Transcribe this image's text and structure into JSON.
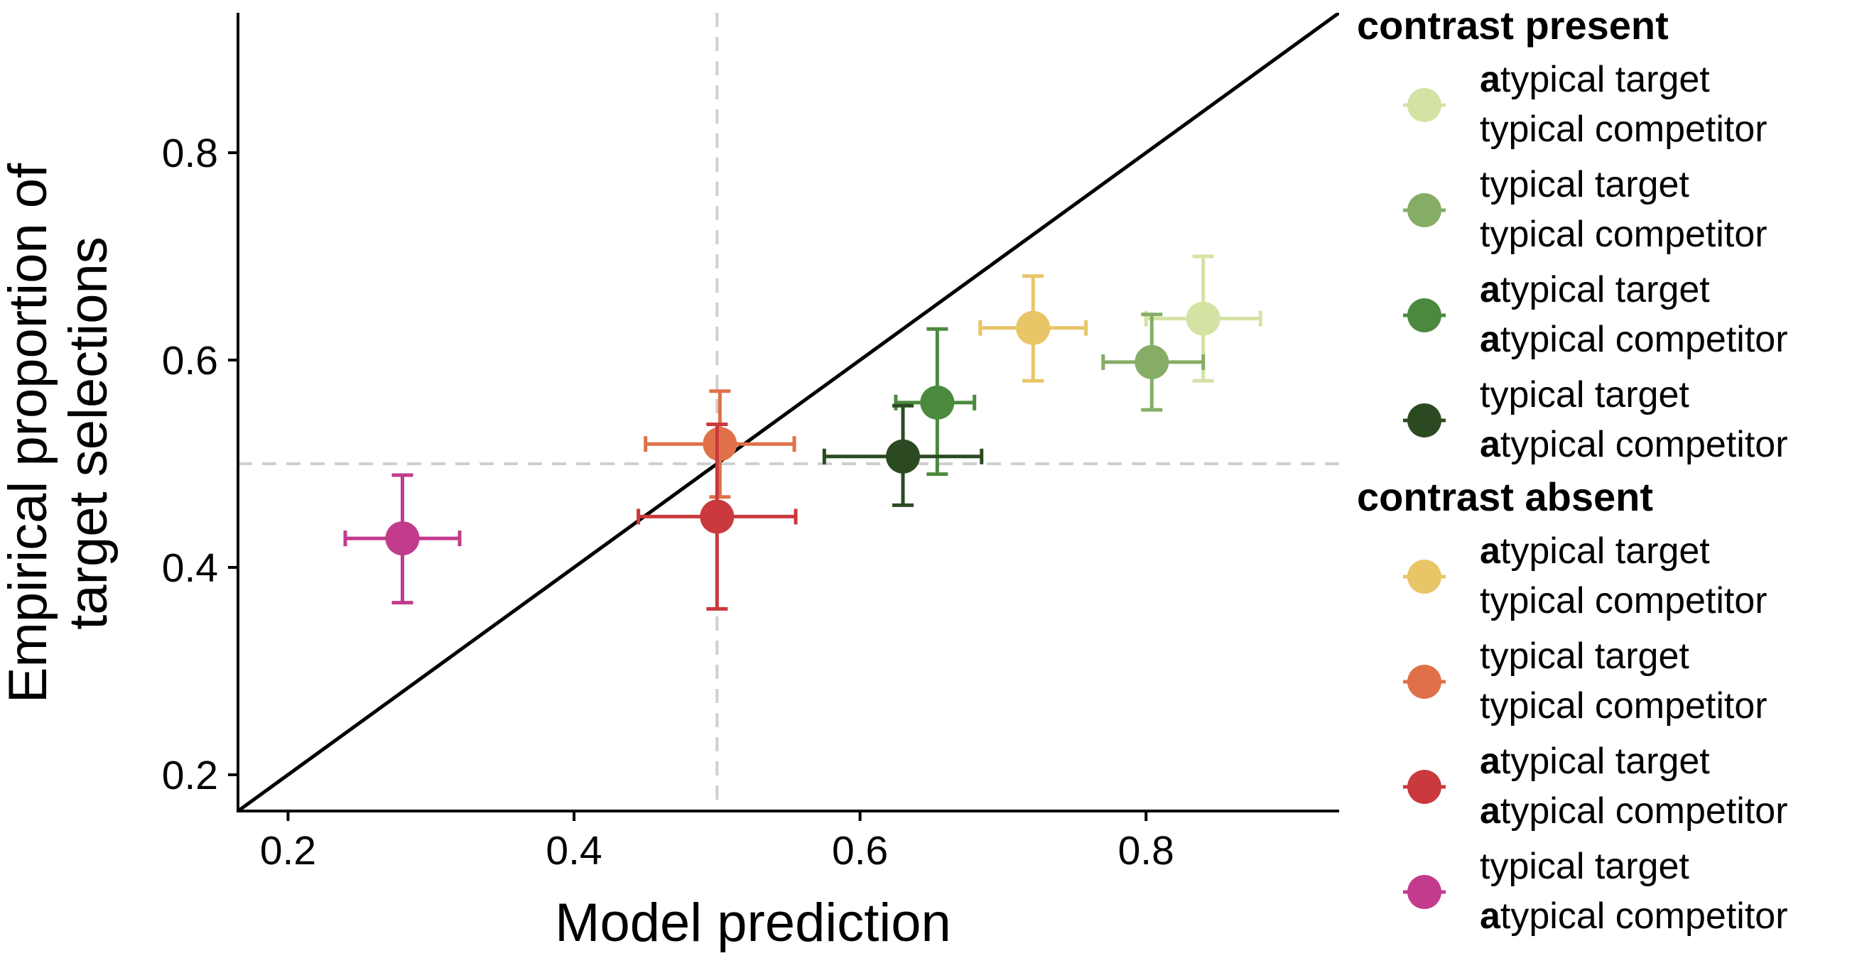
{
  "chart_data": {
    "type": "scatter",
    "xlabel": "Model prediction",
    "ylabel": [
      "Empirical proportion of",
      "target selections"
    ],
    "xlim": [
      0.165,
      0.935
    ],
    "ylim": [
      0.165,
      0.935
    ],
    "xticks": [
      "0.2",
      "0.4",
      "0.6",
      "0.8"
    ],
    "yticks": [
      "0.2",
      "0.4",
      "0.6",
      "0.8"
    ],
    "xtick_values": [
      0.2,
      0.4,
      0.6,
      0.8
    ],
    "ytick_values": [
      0.2,
      0.4,
      0.6,
      0.8
    ],
    "reference_lines": {
      "diagonal": "y = x",
      "vertical_dashed_x": 0.5,
      "horizontal_dashed_y": 0.5
    },
    "grid": false,
    "legend_position": "right",
    "groups": [
      {
        "title": "contrast present",
        "series": [
          {
            "line1": {
              "bold": "a",
              "rest": "typical target"
            },
            "line2": {
              "bold": "",
              "rest": "typical competitor"
            },
            "color": "#d4e3a3",
            "x": 0.84,
            "y": 0.64,
            "xerr": [
              0.8,
              0.88
            ],
            "yerr": [
              0.58,
              0.7
            ]
          },
          {
            "line1": {
              "bold": "",
              "rest": "typical target"
            },
            "line2": {
              "bold": "",
              "rest": "typical competitor"
            },
            "color": "#86ad66",
            "x": 0.804,
            "y": 0.598,
            "xerr": [
              0.77,
              0.84
            ],
            "yerr": [
              0.552,
              0.644
            ]
          },
          {
            "line1": {
              "bold": "a",
              "rest": "typical target"
            },
            "line2": {
              "bold": "a",
              "rest": "typical competitor"
            },
            "color": "#4b8a3e",
            "x": 0.654,
            "y": 0.559,
            "xerr": [
              0.625,
              0.68
            ],
            "yerr": [
              0.49,
              0.63
            ]
          },
          {
            "line1": {
              "bold": "",
              "rest": "typical target"
            },
            "line2": {
              "bold": "a",
              "rest": "typical competitor"
            },
            "color": "#2b4a22",
            "x": 0.63,
            "y": 0.507,
            "xerr": [
              0.575,
              0.685
            ],
            "yerr": [
              0.46,
              0.556
            ]
          }
        ]
      },
      {
        "title": "contrast absent",
        "series": [
          {
            "line1": {
              "bold": "a",
              "rest": "typical target"
            },
            "line2": {
              "bold": "",
              "rest": "typical competitor"
            },
            "color": "#e8c567",
            "x": 0.721,
            "y": 0.631,
            "xerr": [
              0.684,
              0.758
            ],
            "yerr": [
              0.58,
              0.681
            ]
          },
          {
            "line1": {
              "bold": "",
              "rest": "typical target"
            },
            "line2": {
              "bold": "",
              "rest": "typical competitor"
            },
            "color": "#e07048",
            "x": 0.502,
            "y": 0.519,
            "xerr": [
              0.45,
              0.554
            ],
            "yerr": [
              0.468,
              0.57
            ]
          },
          {
            "line1": {
              "bold": "a",
              "rest": "typical target"
            },
            "line2": {
              "bold": "a",
              "rest": "typical competitor"
            },
            "color": "#c9393d",
            "x": 0.5,
            "y": 0.449,
            "xerr": [
              0.445,
              0.555
            ],
            "yerr": [
              0.36,
              0.538
            ]
          },
          {
            "line1": {
              "bold": "",
              "rest": "typical target"
            },
            "line2": {
              "bold": "a",
              "rest": "typical competitor"
            },
            "color": "#c23b8c",
            "x": 0.28,
            "y": 0.428,
            "xerr": [
              0.24,
              0.32
            ],
            "yerr": [
              0.366,
              0.489
            ]
          }
        ]
      }
    ]
  }
}
